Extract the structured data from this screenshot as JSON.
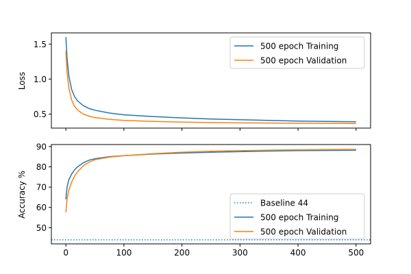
{
  "chart_data": [
    {
      "type": "line",
      "title": "",
      "xlabel": "",
      "ylabel": "Loss",
      "xlim": [
        -25,
        525
      ],
      "ylim": [
        0.3,
        1.66
      ],
      "xticks": [
        0,
        100,
        200,
        300,
        400,
        500
      ],
      "xtick_labels_visible": false,
      "yticks": [
        0.5,
        1.0,
        1.5
      ],
      "ytick_labels": [
        "0.5",
        "1.0",
        "1.5"
      ],
      "grid": false,
      "legend_position": "top-right",
      "series": [
        {
          "name": "500 epoch Training",
          "color": "#1f77b4",
          "style": "solid",
          "x": [
            0,
            2,
            5,
            10,
            15,
            20,
            30,
            40,
            50,
            75,
            100,
            150,
            200,
            250,
            300,
            350,
            400,
            450,
            500
          ],
          "y": [
            1.6,
            1.3,
            1.05,
            0.85,
            0.75,
            0.69,
            0.62,
            0.58,
            0.555,
            0.515,
            0.49,
            0.465,
            0.445,
            0.43,
            0.42,
            0.41,
            0.4,
            0.395,
            0.39
          ]
        },
        {
          "name": "500 epoch Validation",
          "color": "#ff7f0e",
          "style": "solid",
          "x": [
            0,
            2,
            5,
            10,
            15,
            20,
            30,
            40,
            50,
            75,
            100,
            150,
            200,
            250,
            300,
            350,
            400,
            450,
            500
          ],
          "y": [
            1.4,
            1.1,
            0.88,
            0.7,
            0.61,
            0.56,
            0.5,
            0.47,
            0.45,
            0.425,
            0.41,
            0.395,
            0.385,
            0.38,
            0.375,
            0.372,
            0.37,
            0.368,
            0.365
          ]
        }
      ]
    },
    {
      "type": "line",
      "title": "",
      "xlabel": "",
      "ylabel": "Accuracy %",
      "xlim": [
        -25,
        525
      ],
      "ylim": [
        42,
        91
      ],
      "xticks": [
        0,
        100,
        200,
        300,
        400,
        500
      ],
      "xtick_labels": [
        "0",
        "100",
        "200",
        "300",
        "400",
        "500"
      ],
      "yticks": [
        50,
        60,
        70,
        80,
        90
      ],
      "ytick_labels": [
        "50",
        "60",
        "70",
        "80",
        "90"
      ],
      "grid": false,
      "legend_position": "bottom-right",
      "series": [
        {
          "name": "Baseline 44",
          "color": "#1f77b4",
          "style": "dotted",
          "x": [
            -25,
            525
          ],
          "y": [
            44,
            44
          ]
        },
        {
          "name": "500 epoch Training",
          "color": "#1f77b4",
          "style": "solid",
          "x": [
            0,
            2,
            5,
            10,
            15,
            20,
            30,
            40,
            50,
            75,
            100,
            150,
            200,
            250,
            300,
            350,
            400,
            450,
            500
          ],
          "y": [
            64,
            70,
            73.5,
            76.5,
            78.5,
            80,
            82,
            83.3,
            84,
            85,
            85.5,
            86.3,
            86.8,
            87.2,
            87.5,
            87.8,
            88,
            88.1,
            88.2
          ]
        },
        {
          "name": "500 epoch Validation",
          "color": "#ff7f0e",
          "style": "solid",
          "x": [
            0,
            2,
            5,
            10,
            15,
            20,
            30,
            40,
            50,
            75,
            100,
            150,
            200,
            250,
            300,
            350,
            400,
            450,
            500
          ],
          "y": [
            57.5,
            64,
            68.5,
            72.5,
            75.5,
            77.5,
            80.5,
            82.3,
            83.5,
            84.8,
            85.5,
            86.5,
            87.2,
            87.7,
            88,
            88.2,
            88.4,
            88.5,
            88.6
          ]
        }
      ]
    }
  ]
}
